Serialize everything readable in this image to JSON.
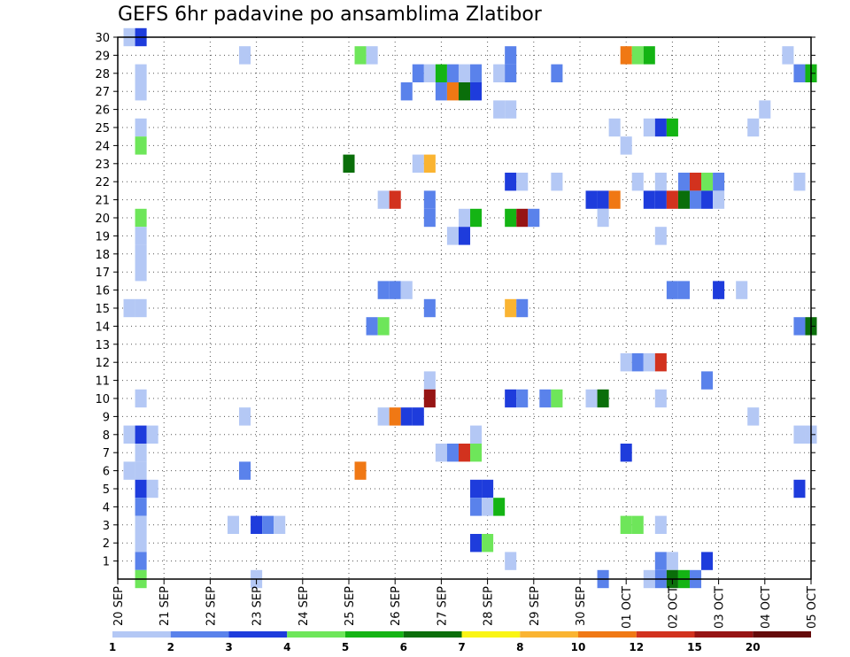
{
  "chart_data": {
    "type": "heatmap",
    "title": "GEFS 6hr padavine po ansamblima Zlatibor",
    "x_tick_labels": [
      "20 SEP",
      "21 SEP",
      "22 SEP",
      "23 SEP",
      "24 SEP",
      "25 SEP",
      "26 SEP",
      "27 SEP",
      "28 SEP",
      "29 SEP",
      "30 SEP",
      "01 OCT",
      "02 OCT",
      "03 OCT",
      "04 OCT",
      "05 OCT"
    ],
    "y_tick_labels": [
      "1",
      "2",
      "3",
      "4",
      "5",
      "6",
      "7",
      "8",
      "9",
      "10",
      "11",
      "12",
      "13",
      "14",
      "15",
      "16",
      "17",
      "18",
      "19",
      "20",
      "21",
      "22",
      "23",
      "24",
      "25",
      "26",
      "27",
      "28",
      "29",
      "30"
    ],
    "x_unit": "6-hour step since 20 SEP",
    "x_range": [
      0,
      60
    ],
    "y_range": [
      0,
      30
    ],
    "grid": "dotted",
    "legend": {
      "position": "bottom",
      "levels": [
        "1",
        "2",
        "3",
        "4",
        "5",
        "6",
        "7",
        "8",
        "10",
        "12",
        "15",
        "20"
      ],
      "colors": [
        "#B4C8F5",
        "#5A82EB",
        "#1E3CDC",
        "#6EE65A",
        "#14B414",
        "#0A6E0A",
        "#FAF514",
        "#FAB432",
        "#F07814",
        "#D2321E",
        "#961414",
        "#640A0A"
      ]
    },
    "cells": [
      [
        1,
        30,
        1
      ],
      [
        2,
        30,
        3
      ],
      [
        11,
        29,
        1
      ],
      [
        21,
        29,
        4
      ],
      [
        22,
        29,
        1
      ],
      [
        34,
        29,
        2
      ],
      [
        44,
        29,
        9
      ],
      [
        45,
        29,
        4
      ],
      [
        46,
        29,
        5
      ],
      [
        58,
        29,
        1
      ],
      [
        2,
        28,
        1
      ],
      [
        26,
        28,
        2
      ],
      [
        27,
        28,
        1
      ],
      [
        28,
        28,
        5
      ],
      [
        29,
        28,
        2
      ],
      [
        30,
        28,
        1
      ],
      [
        31,
        28,
        2
      ],
      [
        33,
        28,
        1
      ],
      [
        34,
        28,
        2
      ],
      [
        38,
        28,
        2
      ],
      [
        59,
        28,
        2
      ],
      [
        60,
        28,
        5
      ],
      [
        2,
        27,
        1
      ],
      [
        25,
        27,
        2
      ],
      [
        28,
        27,
        2
      ],
      [
        29,
        27,
        9
      ],
      [
        30,
        27,
        6
      ],
      [
        31,
        27,
        3
      ],
      [
        56,
        26,
        1
      ],
      [
        33,
        26,
        1
      ],
      [
        34,
        26,
        1
      ],
      [
        2,
        25,
        1
      ],
      [
        43,
        25,
        1
      ],
      [
        46,
        25,
        1
      ],
      [
        47,
        25,
        3
      ],
      [
        48,
        25,
        5
      ],
      [
        55,
        25,
        1
      ],
      [
        2,
        24,
        4
      ],
      [
        44,
        24,
        1
      ],
      [
        20,
        23,
        6
      ],
      [
        26,
        23,
        1
      ],
      [
        27,
        23,
        8
      ],
      [
        34,
        22,
        3
      ],
      [
        35,
        22,
        1
      ],
      [
        38,
        22,
        1
      ],
      [
        45,
        22,
        1
      ],
      [
        47,
        22,
        1
      ],
      [
        49,
        22,
        2
      ],
      [
        50,
        22,
        10
      ],
      [
        51,
        22,
        4
      ],
      [
        52,
        22,
        2
      ],
      [
        59,
        22,
        1
      ],
      [
        23,
        21,
        1
      ],
      [
        24,
        21,
        10
      ],
      [
        27,
        21,
        2
      ],
      [
        41,
        21,
        3
      ],
      [
        42,
        21,
        3
      ],
      [
        43,
        21,
        9
      ],
      [
        46,
        21,
        3
      ],
      [
        47,
        21,
        3
      ],
      [
        48,
        21,
        10
      ],
      [
        49,
        21,
        6
      ],
      [
        50,
        21,
        2
      ],
      [
        51,
        21,
        3
      ],
      [
        52,
        21,
        1
      ],
      [
        2,
        20,
        4
      ],
      [
        27,
        20,
        2
      ],
      [
        30,
        20,
        1
      ],
      [
        31,
        20,
        5
      ],
      [
        34,
        20,
        5
      ],
      [
        35,
        20,
        11
      ],
      [
        36,
        20,
        2
      ],
      [
        42,
        20,
        1
      ],
      [
        2,
        19,
        1
      ],
      [
        29,
        19,
        1
      ],
      [
        30,
        19,
        3
      ],
      [
        47,
        19,
        1
      ],
      [
        2,
        18,
        1
      ],
      [
        2,
        17,
        1
      ],
      [
        23,
        16,
        2
      ],
      [
        24,
        16,
        2
      ],
      [
        25,
        16,
        1
      ],
      [
        48,
        16,
        2
      ],
      [
        49,
        16,
        2
      ],
      [
        52,
        16,
        3
      ],
      [
        54,
        16,
        1
      ],
      [
        1,
        15,
        1
      ],
      [
        2,
        15,
        1
      ],
      [
        27,
        15,
        2
      ],
      [
        34,
        15,
        8
      ],
      [
        35,
        15,
        2
      ],
      [
        22,
        14,
        2
      ],
      [
        23,
        14,
        4
      ],
      [
        59,
        14,
        2
      ],
      [
        60,
        14,
        6
      ],
      [
        44,
        12,
        1
      ],
      [
        45,
        12,
        2
      ],
      [
        46,
        12,
        1
      ],
      [
        47,
        12,
        10
      ],
      [
        51,
        11,
        2
      ],
      [
        27,
        11,
        1
      ],
      [
        2,
        10,
        1
      ],
      [
        27,
        10,
        11
      ],
      [
        34,
        10,
        3
      ],
      [
        35,
        10,
        2
      ],
      [
        37,
        10,
        2
      ],
      [
        38,
        10,
        4
      ],
      [
        41,
        10,
        1
      ],
      [
        42,
        10,
        6
      ],
      [
        47,
        10,
        1
      ],
      [
        11,
        9,
        1
      ],
      [
        23,
        9,
        1
      ],
      [
        24,
        9,
        9
      ],
      [
        25,
        9,
        3
      ],
      [
        26,
        9,
        3
      ],
      [
        55,
        9,
        1
      ],
      [
        1,
        8,
        1
      ],
      [
        2,
        8,
        3
      ],
      [
        3,
        8,
        1
      ],
      [
        31,
        8,
        1
      ],
      [
        59,
        8,
        1
      ],
      [
        60,
        8,
        1
      ],
      [
        2,
        7,
        1
      ],
      [
        28,
        7,
        1
      ],
      [
        29,
        7,
        2
      ],
      [
        30,
        7,
        10
      ],
      [
        31,
        7,
        4
      ],
      [
        44,
        7,
        3
      ],
      [
        1,
        6,
        1
      ],
      [
        2,
        6,
        1
      ],
      [
        11,
        6,
        2
      ],
      [
        21,
        6,
        9
      ],
      [
        2,
        5,
        3
      ],
      [
        3,
        5,
        1
      ],
      [
        31,
        5,
        3
      ],
      [
        32,
        5,
        3
      ],
      [
        59,
        5,
        3
      ],
      [
        2,
        4,
        2
      ],
      [
        31,
        4,
        2
      ],
      [
        32,
        4,
        1
      ],
      [
        33,
        4,
        5
      ],
      [
        2,
        3,
        1
      ],
      [
        10,
        3,
        1
      ],
      [
        12,
        3,
        3
      ],
      [
        13,
        3,
        2
      ],
      [
        14,
        3,
        1
      ],
      [
        44,
        3,
        4
      ],
      [
        45,
        3,
        4
      ],
      [
        47,
        3,
        1
      ],
      [
        2,
        2,
        1
      ],
      [
        31,
        2,
        3
      ],
      [
        32,
        2,
        4
      ],
      [
        2,
        1,
        2
      ],
      [
        34,
        1,
        1
      ],
      [
        47,
        1,
        2
      ],
      [
        48,
        1,
        1
      ],
      [
        51,
        1,
        3
      ],
      [
        2,
        0,
        4
      ],
      [
        12,
        0,
        1
      ],
      [
        42,
        0,
        2
      ],
      [
        46,
        0,
        1
      ],
      [
        47,
        0,
        2
      ],
      [
        48,
        0,
        6
      ],
      [
        49,
        0,
        5
      ],
      [
        50,
        0,
        2
      ]
    ]
  }
}
